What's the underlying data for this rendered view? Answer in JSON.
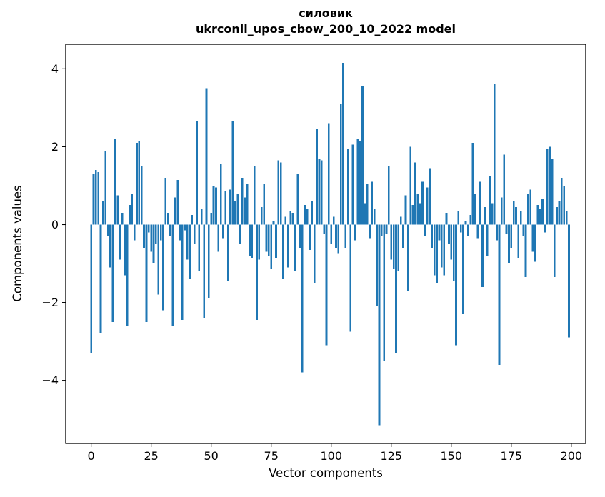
{
  "chart_data": {
    "type": "bar",
    "title": "силовик",
    "subtitle": "ukrconll_upos_cbow_200_10_2022 model",
    "xlabel": "Vector components",
    "ylabel": "Components values",
    "bar_color": "#1f77b4",
    "background": "#ffffff",
    "grid": false,
    "legend": "none",
    "xlim": [
      -10.6,
      206.0
    ],
    "ylim": [
      -5.62,
      4.63
    ],
    "x_ticks": [
      {
        "v": 0,
        "label": "0"
      },
      {
        "v": 25,
        "label": "25"
      },
      {
        "v": 50,
        "label": "50"
      },
      {
        "v": 75,
        "label": "75"
      },
      {
        "v": 100,
        "label": "100"
      },
      {
        "v": 125,
        "label": "125"
      },
      {
        "v": 150,
        "label": "150"
      },
      {
        "v": 175,
        "label": "175"
      },
      {
        "v": 200,
        "label": "200"
      }
    ],
    "y_ticks": [
      {
        "v": -4,
        "label": "−4"
      },
      {
        "v": -2,
        "label": "−2"
      },
      {
        "v": 0,
        "label": "0"
      },
      {
        "v": 2,
        "label": "2"
      },
      {
        "v": 4,
        "label": "4"
      }
    ],
    "values": [
      -3.3,
      1.3,
      1.4,
      1.35,
      -2.8,
      0.6,
      1.9,
      -0.3,
      -1.1,
      -2.5,
      2.2,
      0.75,
      -0.9,
      0.3,
      -1.3,
      -2.6,
      0.5,
      0.8,
      -0.4,
      2.1,
      2.15,
      1.5,
      -0.6,
      -2.5,
      -0.2,
      -0.7,
      -1.0,
      -0.5,
      -1.8,
      -0.4,
      -2.2,
      1.2,
      0.3,
      -0.3,
      -2.6,
      0.7,
      1.15,
      -0.4,
      -2.45,
      -0.15,
      -0.9,
      -1.4,
      0.25,
      -0.5,
      2.65,
      -1.2,
      0.4,
      -2.4,
      3.5,
      -1.9,
      0.3,
      1.0,
      0.95,
      -0.7,
      1.55,
      -0.35,
      0.85,
      -1.45,
      0.9,
      2.65,
      0.6,
      0.8,
      -0.5,
      1.2,
      0.7,
      1.05,
      -0.8,
      -0.85,
      1.5,
      -2.45,
      -0.9,
      0.45,
      1.05,
      -0.7,
      -0.8,
      -1.15,
      0.1,
      -0.85,
      1.65,
      1.6,
      -1.4,
      0.2,
      -1.1,
      0.35,
      0.3,
      -1.2,
      1.3,
      -0.6,
      -3.8,
      0.5,
      0.4,
      -0.65,
      0.6,
      -1.5,
      2.45,
      1.7,
      1.65,
      -0.25,
      -3.1,
      2.6,
      -0.5,
      0.2,
      -0.6,
      -0.75,
      3.1,
      4.15,
      -0.6,
      1.95,
      -2.75,
      2.05,
      -0.4,
      2.2,
      2.15,
      3.55,
      0.55,
      1.05,
      -0.35,
      1.1,
      0.4,
      -2.1,
      -5.15,
      -0.3,
      -3.5,
      -0.25,
      1.5,
      -0.9,
      -1.15,
      -3.3,
      -1.2,
      0.2,
      -0.6,
      0.75,
      -1.7,
      2.0,
      0.5,
      1.6,
      0.8,
      0.55,
      1.1,
      -0.3,
      0.95,
      1.45,
      -0.6,
      -1.3,
      -1.5,
      -0.4,
      -1.1,
      -1.3,
      0.3,
      -0.5,
      -0.9,
      -1.45,
      -3.1,
      0.35,
      -0.2,
      -2.3,
      0.1,
      -0.3,
      0.25,
      2.1,
      0.8,
      -0.35,
      1.1,
      -1.6,
      0.45,
      -0.8,
      1.25,
      0.55,
      3.6,
      -0.4,
      -3.6,
      0.7,
      1.8,
      -0.25,
      -1.0,
      -0.6,
      0.6,
      0.45,
      -0.85,
      0.35,
      -0.3,
      -1.35,
      0.8,
      0.9,
      -0.7,
      -0.95,
      0.5,
      0.4,
      0.65,
      -0.2,
      1.95,
      2.0,
      1.7,
      -1.35,
      0.45,
      0.6,
      1.2,
      1.0,
      0.35,
      -2.9
    ]
  }
}
